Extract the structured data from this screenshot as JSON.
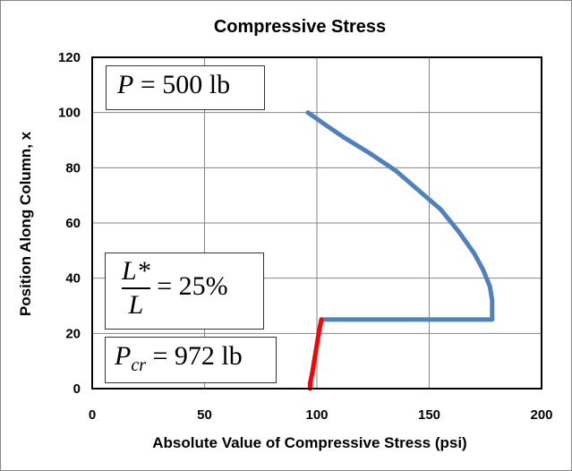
{
  "chart_data": {
    "type": "line",
    "title": "Compressive Stress",
    "xlabel": "Absolute Value of Compressive Stress (psi)",
    "ylabel": "Position Along Column, x",
    "xlim": [
      0,
      200
    ],
    "ylim": [
      0,
      120
    ],
    "xticks": [
      "0",
      "50",
      "100",
      "150",
      "200"
    ],
    "yticks": [
      "0",
      "20",
      "40",
      "60",
      "80",
      "100",
      "120"
    ],
    "grid": true,
    "series": [
      {
        "color": "#4f81bd",
        "points": [
          [
            96,
            100
          ],
          [
            103,
            96
          ],
          [
            112,
            91
          ],
          [
            124,
            85
          ],
          [
            135,
            79
          ],
          [
            145,
            72
          ],
          [
            155,
            65
          ],
          [
            163,
            57
          ],
          [
            170,
            49
          ],
          [
            174,
            43
          ],
          [
            177,
            37
          ],
          [
            178,
            32
          ],
          [
            178,
            28
          ],
          [
            178,
            25
          ],
          [
            150,
            25
          ],
          [
            125,
            25
          ],
          [
            102,
            25
          ]
        ]
      },
      {
        "color": "#ff0000",
        "points": [
          [
            102,
            25
          ],
          [
            101,
            21
          ],
          [
            100,
            16
          ],
          [
            99,
            11
          ],
          [
            98,
            6
          ],
          [
            97,
            2
          ],
          [
            97,
            0
          ]
        ]
      }
    ],
    "annotations": {
      "load": {
        "symbol": "P",
        "value": "= 500 lb"
      },
      "ratio": {
        "numerator": "L*",
        "denominator": "L",
        "value": "= 25%"
      },
      "critical": {
        "symbol": "P",
        "subscript": "cr",
        "value": "= 972 lb"
      }
    }
  }
}
